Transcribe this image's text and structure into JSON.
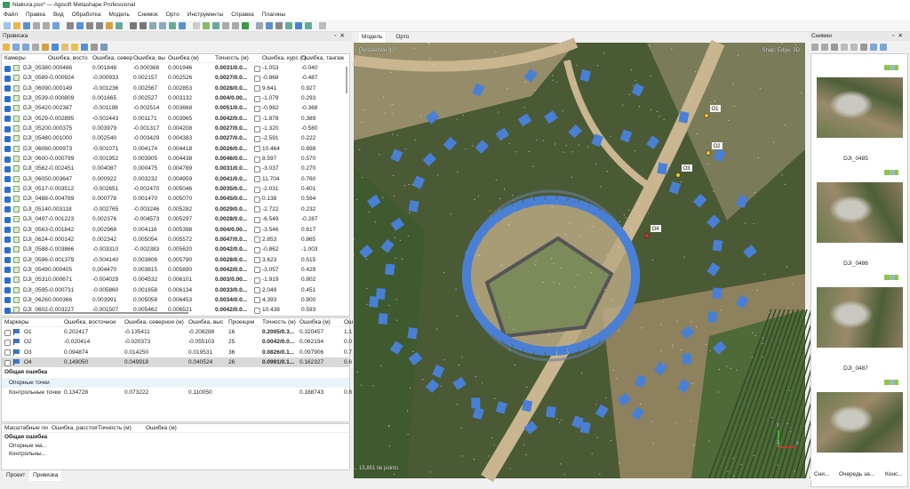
{
  "window": {
    "title": "Niakura.psx* — Agisoft Metashape Professional"
  },
  "menu": [
    "Файл",
    "Правка",
    "Вид",
    "Обработка",
    "Модель",
    "Снимок",
    "Орто",
    "Инструменты",
    "Справка",
    "Плагины"
  ],
  "reference_panel": {
    "title": "Привязка",
    "cameras": {
      "headers": [
        "Камеры",
        "Ошибка, восто",
        "Ошибка, север",
        "Ошибка, вы",
        "Ошибка (м)",
        "Точность (м)",
        "Ошибка, курс (°)",
        "Ошибка, тангаж"
      ],
      "rows": [
        [
          "DJI_0538",
          "0.000486",
          "0.001848",
          "-0.000368",
          "0.001946",
          "0.0031/0.0...",
          "-1.053",
          "-0.040"
        ],
        [
          "DJI_0589",
          "-0.000924",
          "-0.000933",
          "0.002157",
          "0.002526",
          "0.0027/0.0...",
          "-0.868",
          "-0.487"
        ],
        [
          "DJI_0609",
          "0.000149",
          "-0.001236",
          "0.002567",
          "0.002853",
          "0.0028/0.0...",
          "9.641",
          "0.927"
        ],
        [
          "DJI_0539",
          "-0.000809",
          "0.001665",
          "0.002527",
          "0.003132",
          "0.004/0.00...",
          "-1.079",
          "0.293"
        ],
        [
          "DJI_0542",
          "0.002387",
          "-0.001198",
          "-0.002514",
          "0.003668",
          "0.0051/0.0...",
          "-0.982",
          "-0.368"
        ],
        [
          "DJI_0529",
          "-0.002895",
          "-0.002443",
          "0.001171",
          "0.003965",
          "0.0042/0.0...",
          "-1.878",
          "0.389"
        ],
        [
          "DJI_0520",
          "0.000375",
          "0.003979",
          "-0.001317",
          "0.004208",
          "0.0027/0.0...",
          "-1.320",
          "-0.580"
        ],
        [
          "DJI_0548",
          "0.001000",
          "0.002540",
          "-0.003429",
          "0.004383",
          "0.0027/0.0...",
          "-2.591",
          "0.222"
        ],
        [
          "DJI_0608",
          "0.000973",
          "-0.001071",
          "0.004174",
          "0.004418",
          "0.0026/0.0...",
          "10.464",
          "0.898"
        ],
        [
          "DJI_0600",
          "-0.000799",
          "-0.001952",
          "0.003905",
          "0.004438",
          "0.0046/0.0...",
          "8.597",
          "0.570"
        ],
        [
          "DJI_0562",
          "-0.002451",
          "0.004087",
          "0.000475",
          "0.004789",
          "0.0031/0.0...",
          "-3.037",
          "0.270"
        ],
        [
          "DJI_0605",
          "0.003647",
          "0.000922",
          "0.003232",
          "0.004959",
          "0.0041/0.0...",
          "11.704",
          "0.760"
        ],
        [
          "DJI_0517",
          "-0.003512",
          "-0.002651",
          "-0.002470",
          "0.005046",
          "0.0035/0.0...",
          "-2.031",
          "0.401"
        ],
        [
          "DJI_0488",
          "-0.004789",
          "0.000778",
          "0.001470",
          "0.005070",
          "0.0045/0.0...",
          "0.138",
          "0.594"
        ],
        [
          "DJI_0514",
          "0.003118",
          "-0.002765",
          "-0.003246",
          "0.005282",
          "0.0029/0.0...",
          "-2.722",
          "0.232"
        ],
        [
          "DJI_0497",
          "-0.001223",
          "0.002376",
          "-0.004573",
          "0.005297",
          "0.0028/0.0...",
          "-6.549",
          "-0.287"
        ],
        [
          "DJI_0563",
          "-0.001842",
          "0.002968",
          "0.004116",
          "0.005398",
          "0.004/0.00...",
          "-3.546",
          "0.617"
        ],
        [
          "DJI_0624",
          "-0.000142",
          "0.002342",
          "0.005054",
          "0.005572",
          "0.0047/0.0...",
          "2.853",
          "0.865"
        ],
        [
          "DJI_0588",
          "-0.003866",
          "-0.003310",
          "-0.002383",
          "0.005620",
          "0.0042/0.0...",
          "-0.862",
          "-1.003"
        ],
        [
          "DJI_0596",
          "-0.001379",
          "-0.004140",
          "0.003806",
          "0.005790",
          "0.0028/0.0...",
          "3.623",
          "0.515"
        ],
        [
          "DJI_0549",
          "0.000405",
          "0.004470",
          "0.003815",
          "0.005890",
          "0.0042/0.0...",
          "-3.057",
          "0.429"
        ],
        [
          "DJI_0531",
          "0.000671",
          "-0.004029",
          "0.004532",
          "0.006101",
          "0.003/0.00...",
          "-1.919",
          "0.802"
        ],
        [
          "DJI_0595",
          "-0.000731",
          "-0.005860",
          "0.001658",
          "0.006134",
          "0.0033/0.0...",
          "2.049",
          "0.451"
        ],
        [
          "DJI_0626",
          "0.000366",
          "0.003991",
          "0.005058",
          "0.006453",
          "0.0034/0.0...",
          "4.393",
          "0.800"
        ],
        [
          "DJI_0602",
          "-0.003227",
          "-0.001507",
          "0.005462",
          "0.006521",
          "0.0042/0.0...",
          "10.438",
          "0.593"
        ]
      ]
    },
    "markers": {
      "headers": [
        "Маркеры",
        "Ошибка, восточное",
        "Ошибка, северное (м)",
        "Ошибка, выс",
        "Проекции",
        "Точность (м)",
        "Ошибка (м)",
        "Ош"
      ],
      "rows": [
        [
          "O1",
          "0.202417",
          "-0.135411",
          "-0.208288",
          "16",
          "0.2005/0.3...",
          "0.320457",
          "1.1"
        ],
        [
          "O2",
          "-0.020414",
          "-0.020373",
          "-0.055103",
          "25",
          "0.0042/0.0...",
          "0.062194",
          "0.0"
        ],
        [
          "O3",
          "0.094874",
          "0.014250",
          "0.019531",
          "36",
          "0.0826/0.1...",
          "0.097906",
          "0.7"
        ],
        [
          "O4",
          "0.149050",
          "0.049918",
          "0.040524",
          "26",
          "0.0991/0.1...",
          "0.162327",
          "0.6"
        ]
      ],
      "total_label": "Общая ошибка",
      "control_points": "Опорные точки",
      "check_points": {
        "label": "Контрольные точки",
        "values": [
          "0.134728",
          "0.073222",
          "0.110050",
          "0.188743",
          "0.8"
        ]
      }
    },
    "scalebars": {
      "headers": [
        "Масштабные ли",
        "Ошибка, расстоя",
        "Точность (м)",
        "Ошибка (м)"
      ],
      "total_label": "Общая ошибка",
      "control": "Опорные ма...",
      "check": "Контрольны..."
    },
    "bottom_tabs": [
      "Проект",
      "Привязка"
    ]
  },
  "viewport": {
    "tabs": [
      "Модель",
      "Орто"
    ],
    "projection": "Perspective 30°",
    "snap": "Snap: Edge, 3D",
    "tie_points": "15,851 tie points",
    "axis": {
      "y": "y",
      "x": "x",
      "z": "z"
    },
    "markers": [
      "O1",
      "O2",
      "O3",
      "O4"
    ],
    "camera_color": "#4a7fd6"
  },
  "photos_panel": {
    "title": "Снимки",
    "items": [
      "DJI_0485",
      "DJI_0486",
      "DJI_0487"
    ],
    "bottom_tabs": [
      "Сни...",
      "Очередь за...",
      "Конс..."
    ]
  }
}
